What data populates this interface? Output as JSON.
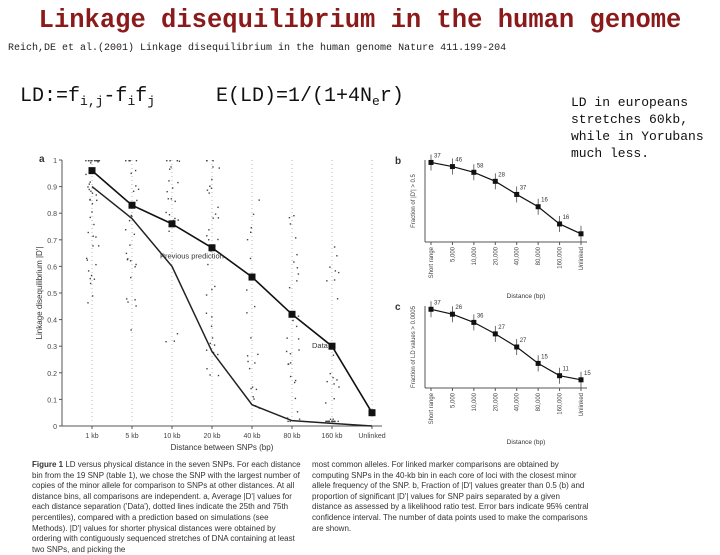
{
  "slide": {
    "title": "Linkage disequilibrium in the human genome",
    "citation": "Reich,DE et al.(2001) Linkage disequilibrium in the human genome Nature 411.199-204",
    "formula_ld": "LD:=f",
    "formula_ld_sub1": "i,j",
    "formula_ld_mid": "-f",
    "formula_ld_sub2": "i",
    "formula_ld_f": "f",
    "formula_ld_sub3": "j",
    "formula_e": "E(LD)=1/(1+4N",
    "formula_e_sub": "e",
    "formula_e_end": "r)",
    "note": "LD in europeans stretches 60kb, while in Yorubans much less."
  },
  "chart_data": [
    {
      "type": "line",
      "panel": "a",
      "ylabel": "Linkage disequilibrium |D'|",
      "xlabel": "Distance between SNPs (bp)",
      "ylim": [
        0,
        1
      ],
      "yticks": [
        "0",
        "0.1",
        "0.2",
        "0.3",
        "0.4",
        "0.5",
        "0.6",
        "0.7",
        "0.8",
        "0.9",
        "1"
      ],
      "categories": [
        "1 kb",
        "5 kb",
        "10 kb",
        "20 kb",
        "40 kb",
        "80 kb",
        "160 kb",
        "Unlinked"
      ],
      "series": [
        {
          "name": "data",
          "values": [
            0.96,
            0.83,
            0.76,
            0.67,
            0.56,
            0.42,
            0.3,
            0.05
          ]
        },
        {
          "name": "Previous prediction",
          "values": [
            0.9,
            0.78,
            0.6,
            0.28,
            0.08,
            0.02,
            0.01,
            0.0
          ]
        }
      ],
      "annotation_prediction": "Previous prediction",
      "annotation_data": "Data",
      "panel_label": "a"
    },
    {
      "type": "line",
      "panel": "b",
      "ylabel": "Fraction of |D'| > 0.5",
      "xlabel": "Distance (bp)",
      "categories": [
        "Short range",
        "5,000",
        "10,000",
        "20,000",
        "40,000",
        "80,000",
        "160,000",
        "Unlinked"
      ],
      "values": [
        0.97,
        0.92,
        0.85,
        0.74,
        0.58,
        0.43,
        0.22,
        0.1
      ],
      "point_labels": [
        "37",
        "46",
        "58",
        "28",
        "37",
        "16",
        "16",
        ""
      ],
      "panel_label": "b"
    },
    {
      "type": "line",
      "panel": "c",
      "ylabel": "Fraction of LD values > 0.0005",
      "xlabel": "Distance (bp)",
      "categories": [
        "Short range",
        "5,000",
        "10,000",
        "20,000",
        "40,000",
        "80,000",
        "160,000",
        "Unlinked"
      ],
      "values": [
        0.96,
        0.9,
        0.8,
        0.66,
        0.5,
        0.3,
        0.15,
        0.1
      ],
      "point_labels": [
        "37",
        "26",
        "36",
        "27",
        "27",
        "15",
        "11",
        "15"
      ],
      "panel_label": "c"
    }
  ],
  "caption": {
    "left_label": "Figure 1",
    "left_text": " LD versus physical distance in the seven SNPs. For each distance bin from the 19 SNP (table 1), we chose the SNP with the largest number of copies of the minor allele for comparison to SNPs at other distances. At all distance bins, all comparisons are independent. a, Average |D'| values for each distance separation ('Data'), dotted lines indicate the 25th and 75th percentiles), compared with a prediction based on simulations (see Methods). |D'| values for shorter physical distances were obtained by ordering with contiguously sequenced stretches of DNA containing at least two SNPs, and picking the",
    "right_text": "most common alleles. For linked marker comparisons are obtained by computing SNPs in the 40-kb bin in each core of loci with the closest minor allele frequency of the SNP. b, Fraction of |D'| values greater than 0.5 (b) and proportion of significant |D'| values for SNP pairs separated by a given distance as assessed by a likelihood ratio test. Error bars indicate 95% central confidence interval. The number of data points used to make the comparisons are shown."
  }
}
